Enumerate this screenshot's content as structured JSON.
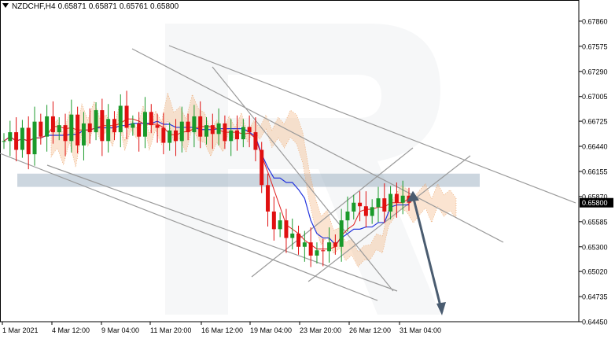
{
  "header": {
    "symbol": "NZDCHF,H4",
    "open": "0.65871",
    "high": "0.65871",
    "low": "0.65761",
    "close": "0.65800"
  },
  "price_label": "0.65800",
  "chart_data": {
    "type": "candlestick",
    "title": "NZDCHF,H4",
    "ylim": [
      0.6445,
      0.6802
    ],
    "y_ticks": [
      "0.67860",
      "0.67575",
      "0.67290",
      "0.67005",
      "0.66725",
      "0.66440",
      "0.66155",
      "0.65870",
      "0.65585",
      "0.65300",
      "0.65020",
      "0.64735",
      "0.64450"
    ],
    "x_ticks": [
      "1 Mar 2021",
      "4 Mar 12:00",
      "9 Mar 04:00",
      "11 Mar 20:00",
      "16 Mar 12:00",
      "19 Mar 04:00",
      "23 Mar 20:00",
      "26 Mar 12:00",
      "31 Mar 04:00"
    ],
    "current_price": 0.658,
    "support_resistance_zone": [
      0.6598,
      0.6613
    ],
    "forecast_arrow": {
      "from": 0.6588,
      "to": 0.6445
    },
    "closes": [
      0.665,
      0.666,
      0.664,
      0.6665,
      0.6635,
      0.6672,
      0.6655,
      0.6678,
      0.666,
      0.6668,
      0.665,
      0.668,
      0.6645,
      0.667,
      0.666,
      0.6685,
      0.665,
      0.6675,
      0.666,
      0.669,
      0.6665,
      0.667,
      0.6655,
      0.6683,
      0.6668,
      0.6665,
      0.6648,
      0.6662,
      0.665,
      0.6672,
      0.666,
      0.6678,
      0.6655,
      0.6668,
      0.6658,
      0.667,
      0.665,
      0.6662,
      0.6652,
      0.6666,
      0.666,
      0.664,
      0.66,
      0.657,
      0.655,
      0.656,
      0.654,
      0.6545,
      0.653,
      0.6535,
      0.652,
      0.6526,
      0.6525,
      0.6535,
      0.653,
      0.656,
      0.657,
      0.658,
      0.6576,
      0.6565,
      0.6575,
      0.6585,
      0.657,
      0.659,
      0.658,
      0.6588,
      0.658
    ]
  }
}
